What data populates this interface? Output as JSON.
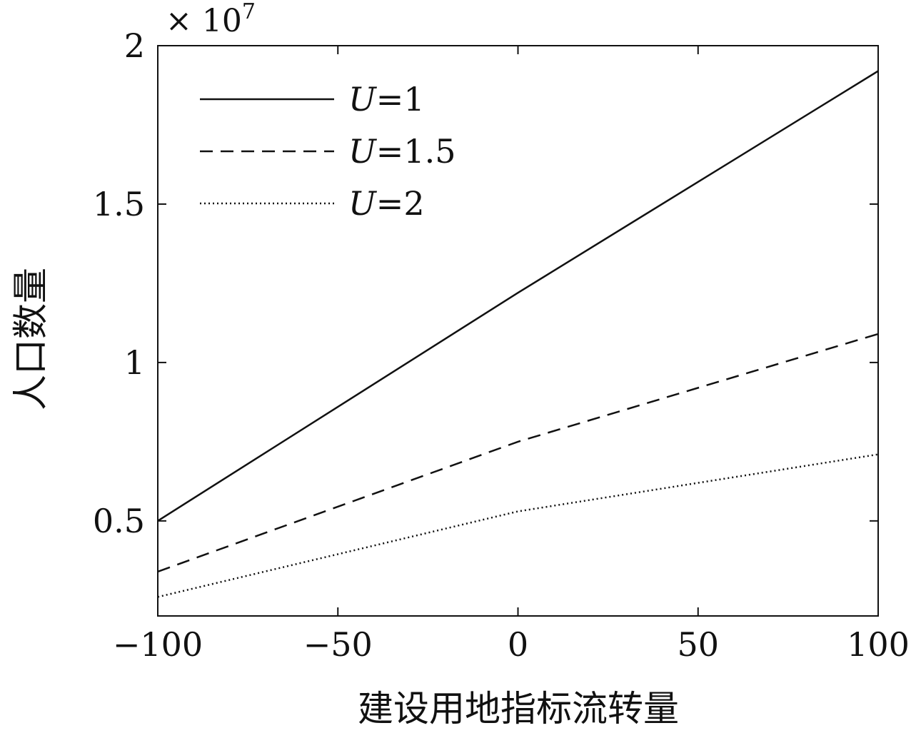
{
  "chart_data": {
    "type": "line",
    "xlabel": "建设用地指标流转量",
    "ylabel": "人口数量",
    "y_multiplier_text": "× 10",
    "y_multiplier_exp": "7",
    "xlim": [
      -100,
      100
    ],
    "ylim": [
      0.2,
      2.0
    ],
    "xticks": [
      -100,
      -50,
      0,
      50,
      100
    ],
    "xtick_labels": [
      "−100",
      "−50",
      "0",
      "50",
      "100"
    ],
    "yticks": [
      0.5,
      1,
      1.5,
      2
    ],
    "ytick_labels": [
      "0.5",
      "1",
      "1.5",
      "2"
    ],
    "grid": false,
    "legend_position": "top-left",
    "series": [
      {
        "name": "U=1",
        "var": "U",
        "eq": "=1",
        "style": "solid",
        "x": [
          -100,
          0,
          100
        ],
        "y": [
          0.5,
          1.22,
          1.92
        ]
      },
      {
        "name": "U=1.5",
        "var": "U",
        "eq": "=1.5",
        "style": "dashed",
        "x": [
          -100,
          0,
          100
        ],
        "y": [
          0.34,
          0.75,
          1.09
        ]
      },
      {
        "name": "U=2",
        "var": "U",
        "eq": "=2",
        "style": "dotted",
        "x": [
          -100,
          0,
          100
        ],
        "y": [
          0.26,
          0.53,
          0.71
        ]
      }
    ]
  }
}
